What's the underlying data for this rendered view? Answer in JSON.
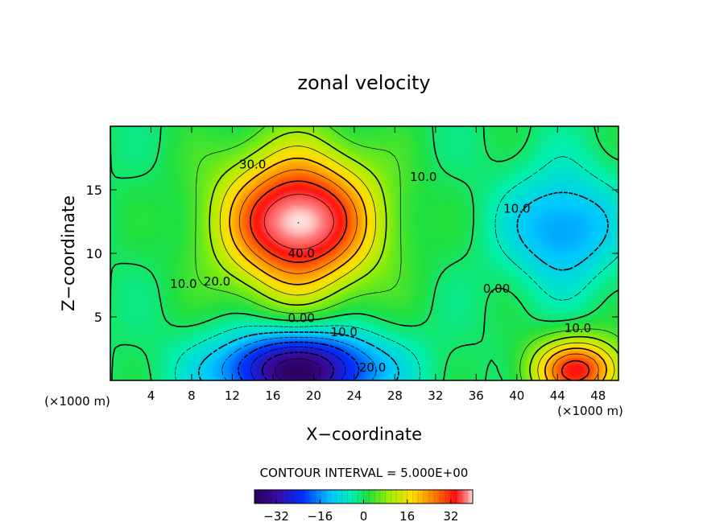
{
  "chart_data": {
    "type": "heatmap",
    "title": "zonal velocity",
    "xlabel": "X−coordinate",
    "ylabel": "Z−coordinate",
    "x_unit_left": "(×1000 m)",
    "x_unit_right": "(×1000 m)",
    "xlim": [
      0,
      50
    ],
    "ylim": [
      0,
      20
    ],
    "xticks": [
      4,
      8,
      12,
      16,
      20,
      24,
      28,
      32,
      36,
      40,
      44,
      48
    ],
    "yticks": [
      5,
      10,
      15
    ],
    "contour_interval_text": "CONTOUR INTERVAL = 5.000E+00",
    "colorbar": {
      "range": [
        -40,
        40
      ],
      "ticks": [
        -32,
        -16,
        0,
        16,
        32
      ],
      "tick_labels": [
        "−32",
        "−16",
        "0",
        "16",
        "32"
      ]
    },
    "contour_labels": [
      {
        "text": "30.0",
        "x": 14.0,
        "z": 17.0
      },
      {
        "text": "40.0",
        "x": 18.8,
        "z": 10.0
      },
      {
        "text": "20.0",
        "x": 10.5,
        "z": 7.8
      },
      {
        "text": "10.0",
        "x": 7.2,
        "z": 7.6
      },
      {
        "text": "0.00",
        "x": 18.8,
        "z": 4.9
      },
      {
        "text": "10.0",
        "x": 23.0,
        "z": 3.8
      },
      {
        "text": "20.0",
        "x": 25.8,
        "z": 1.0
      },
      {
        "text": "10.0",
        "x": 30.8,
        "z": 16.0
      },
      {
        "text": "10.0",
        "x": 40.0,
        "z": 13.5
      },
      {
        "text": "0.00",
        "x": 38.0,
        "z": 7.2
      },
      {
        "text": "10.0",
        "x": 46.0,
        "z": 4.1
      }
    ],
    "features": [
      {
        "kind": "max",
        "x": 18.5,
        "z": 12.5,
        "value": 42,
        "rx": 7.5,
        "rz": 5.5
      },
      {
        "kind": "min",
        "x": 18.5,
        "z": 0.8,
        "value": -38,
        "rx": 8.0,
        "rz": 3.0
      },
      {
        "kind": "min",
        "x": 44.5,
        "z": 12.0,
        "value": -16,
        "rx": 5.5,
        "rz": 4.5
      },
      {
        "kind": "max",
        "x": 46.0,
        "z": 0.8,
        "value": 32,
        "rx": 4.5,
        "rz": 2.5
      }
    ]
  }
}
